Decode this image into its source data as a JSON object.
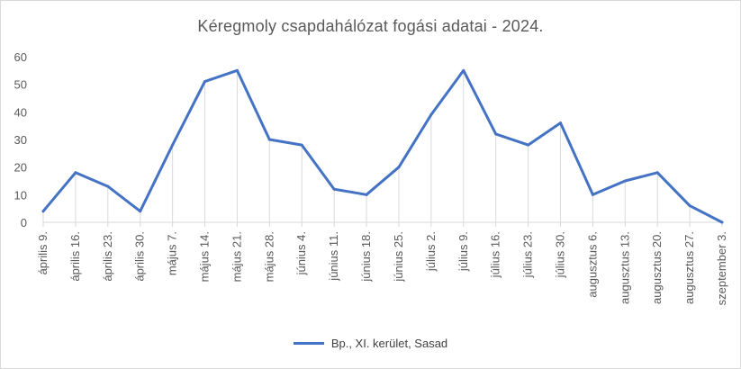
{
  "chart_data": {
    "type": "line",
    "title": "Kéregmoly csapdahálózat fogási adatai - 2024.",
    "xlabel": "",
    "ylabel": "",
    "ylim": [
      0,
      60
    ],
    "yticks": [
      0,
      10,
      20,
      30,
      40,
      50,
      60
    ],
    "grid": false,
    "drop_lines": true,
    "legend_position": "bottom",
    "colors": {
      "series": "#4472c4",
      "drop_line": "#d9d9d9"
    },
    "categories": [
      "április 9.",
      "április 16.",
      "április 23.",
      "április 30.",
      "május 7.",
      "május 14.",
      "május 21.",
      "május 28.",
      "június 4.",
      "június 11.",
      "június 18.",
      "június 25.",
      "július 2.",
      "július 9.",
      "július 16.",
      "július 23.",
      "július 30.",
      "augusztus 6.",
      "augusztus 13.",
      "augusztus 20.",
      "augusztus 27.",
      "szeptember 3."
    ],
    "series": [
      {
        "name": "Bp., XI. kerület, Sasad",
        "values": [
          4,
          18,
          13,
          4,
          28,
          51,
          55,
          30,
          28,
          12,
          10,
          20,
          39,
          55,
          32,
          28,
          36,
          10,
          15,
          18,
          6,
          0
        ]
      }
    ]
  }
}
